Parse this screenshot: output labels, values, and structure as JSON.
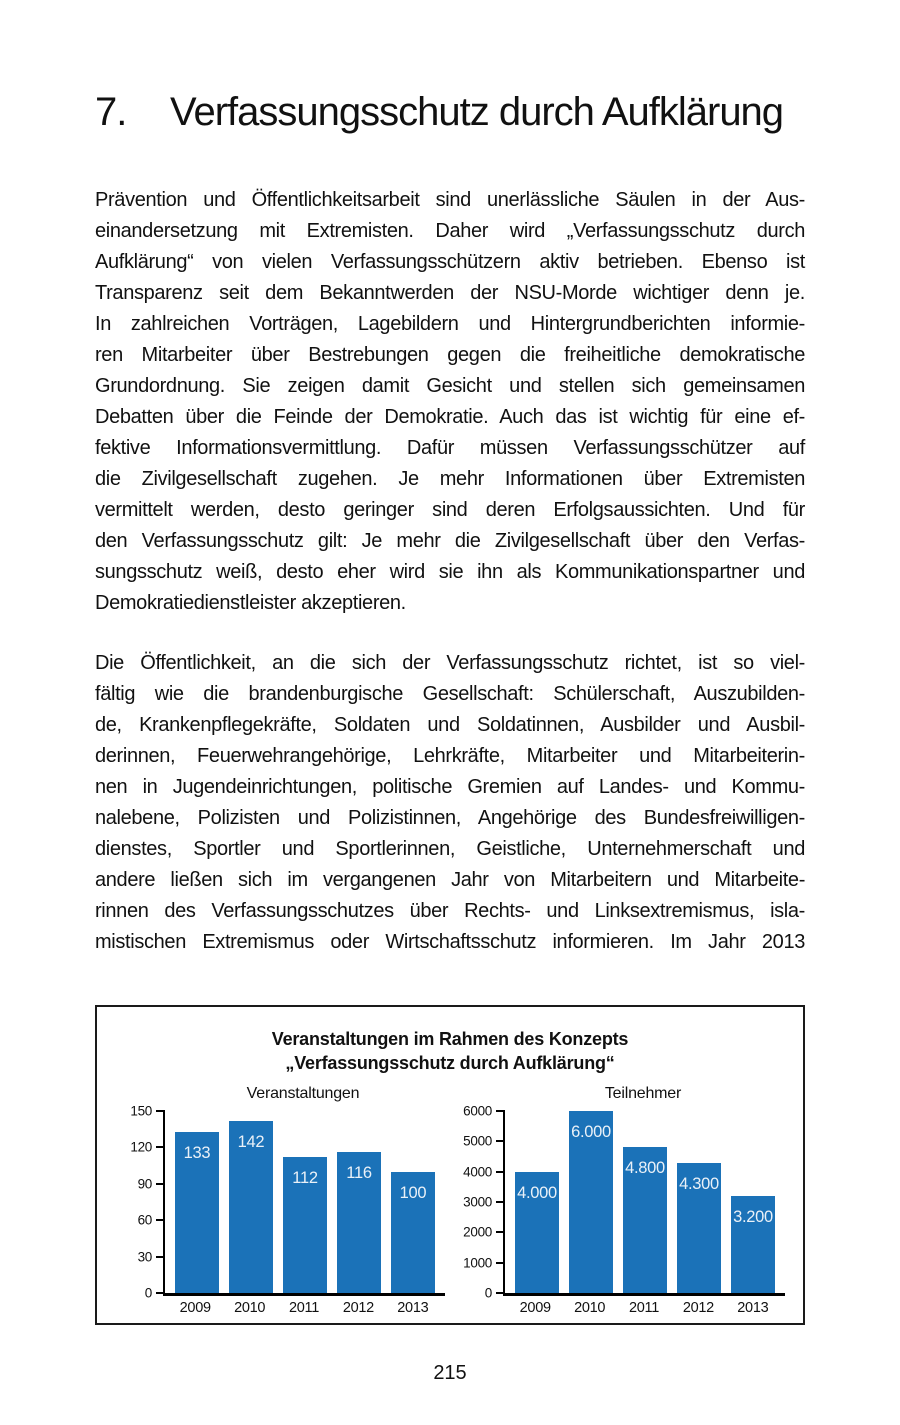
{
  "heading": {
    "number": "7.",
    "text": "Verfassungsschutz durch Aufklärung"
  },
  "paragraphs": [
    {
      "lines": [
        "Prävention und Öffentlichkeitsarbeit sind unerlässliche Säulen in der Aus-",
        "einandersetzung mit Extremisten. Daher wird „Verfassungsschutz durch",
        "Aufklärung“ von vielen Verfassungsschützern aktiv betrieben. Ebenso ist",
        "Transparenz seit dem Bekanntwerden der NSU-Morde wichtiger denn je.",
        "In zahlreichen Vorträgen, Lagebildern und Hintergrundberichten informie-",
        "ren Mitarbeiter über Bestrebungen gegen die freiheitliche demokratische",
        "Grundordnung. Sie zeigen damit Gesicht und stellen sich gemeinsamen",
        "Debatten über die Feinde der Demokratie. Auch das ist wichtig für eine ef-",
        "fektive Informationsvermittlung. Dafür müssen Verfassungsschützer auf",
        "die Zivilgesellschaft zugehen. Je mehr Informationen über Extremisten",
        "vermittelt werden, desto geringer sind deren Erfolgsaussichten. Und für",
        "den Verfassungsschutz gilt: Je mehr die Zivilgesellschaft über den Verfas-",
        "sungsschutz weiß, desto eher wird sie ihn als Kommunikationspartner und",
        "Demokratiedienstleister akzeptieren."
      ]
    },
    {
      "lines": [
        "Die Öffentlichkeit, an die sich der Verfassungsschutz richtet, ist so viel-",
        "fältig wie die brandenburgische Gesellschaft: Schülerschaft, Auszubilden-",
        "de, Krankenpflegekräfte, Soldaten und Soldatinnen, Ausbilder und Ausbil-",
        "derinnen, Feuerwehrangehörige, Lehrkräfte, Mitarbeiter und Mitarbeiterin-",
        "nen in Jugendeinrichtungen, politische Gremien auf Landes- und Kommu-",
        "nalebene, Polizisten und Polizistinnen, Angehörige des Bundesfreiwilligen-",
        "dienstes, Sportler und Sportlerinnen, Geistliche, Unternehmerschaft und",
        "andere ließen sich im vergangenen Jahr von Mitarbeitern und Mitarbeite-",
        "rinnen des Verfassungsschutzes über Rechts- und Linksextremismus, isla-",
        "mistischen Extremismus oder Wirtschaftsschutz informieren. Im Jahr 2013"
      ]
    }
  ],
  "figure": {
    "title_line1": "Veranstaltungen im Rahmen des Konzepts",
    "title_line2": "„Verfassungsschutz durch Aufklärung“",
    "bar_color": "#1b72b8",
    "bar_label_color": "#eaf1f8"
  },
  "chart_data": [
    {
      "type": "bar",
      "title": "Veranstaltungen",
      "categories": [
        "2009",
        "2010",
        "2011",
        "2012",
        "2013"
      ],
      "values": [
        133,
        142,
        112,
        116,
        100
      ],
      "labels": [
        "133",
        "142",
        "112",
        "116",
        "100"
      ],
      "yticks": [
        0,
        30,
        60,
        90,
        120,
        150
      ],
      "ylim": [
        0,
        150
      ],
      "xlabel": "",
      "ylabel": "",
      "grid": false,
      "legend": "none"
    },
    {
      "type": "bar",
      "title": "Teilnehmer",
      "categories": [
        "2009",
        "2010",
        "2011",
        "2012",
        "2013"
      ],
      "values": [
        4000,
        6000,
        4800,
        4300,
        3200
      ],
      "labels": [
        "4.000",
        "6.000",
        "4.800",
        "4.300",
        "3.200"
      ],
      "yticks": [
        0,
        1000,
        2000,
        3000,
        4000,
        5000,
        6000
      ],
      "ylim": [
        0,
        6000
      ],
      "xlabel": "",
      "ylabel": "",
      "grid": false,
      "legend": "none"
    }
  ],
  "page": {
    "number": "215"
  }
}
